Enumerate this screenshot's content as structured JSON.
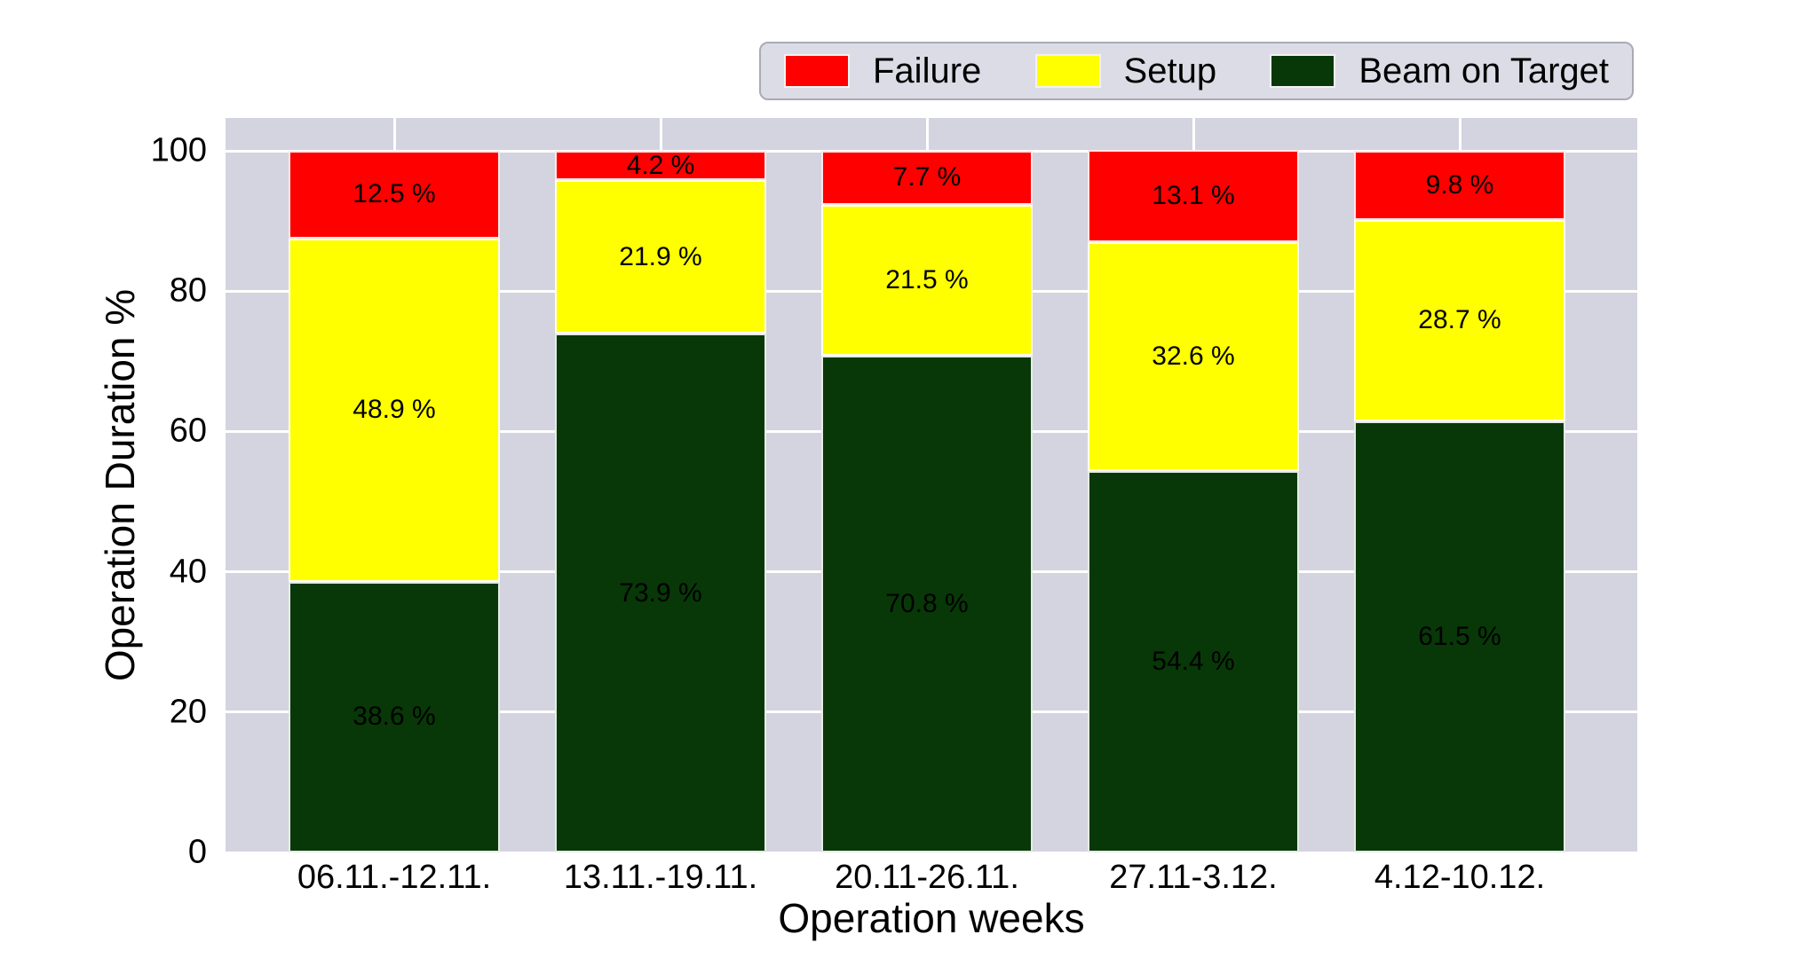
{
  "chart_data": {
    "type": "bar",
    "stacked": true,
    "title": "",
    "xlabel": "Operation weeks",
    "ylabel": "Operation Duration %",
    "categories": [
      "06.11.-12.11.",
      "13.11.-19.11.",
      "20.11-26.11.",
      "27.11-3.12.",
      "4.12-10.12."
    ],
    "series": [
      {
        "name": "Beam on Target",
        "color": "#083808",
        "values": [
          38.6,
          73.9,
          70.8,
          54.4,
          61.5
        ]
      },
      {
        "name": "Setup",
        "color": "#ffff00",
        "values": [
          48.9,
          21.9,
          21.5,
          32.6,
          28.7
        ]
      },
      {
        "name": "Failure",
        "color": "#ff0000",
        "values": [
          12.5,
          4.2,
          7.7,
          13.1,
          9.8
        ]
      }
    ],
    "value_label_suffix": " %",
    "yticks": [
      0,
      20,
      40,
      60,
      80,
      100
    ],
    "ylim": [
      0,
      104.7
    ],
    "grid": true,
    "legend_order": [
      "Failure",
      "Setup",
      "Beam on Target"
    ],
    "legend_position": "top-right",
    "colors": {
      "plot_background": "#d4d4e0",
      "figure_background": "#ffffff",
      "gridline": "#ffffff",
      "legend_background": "#dcdce6"
    }
  }
}
